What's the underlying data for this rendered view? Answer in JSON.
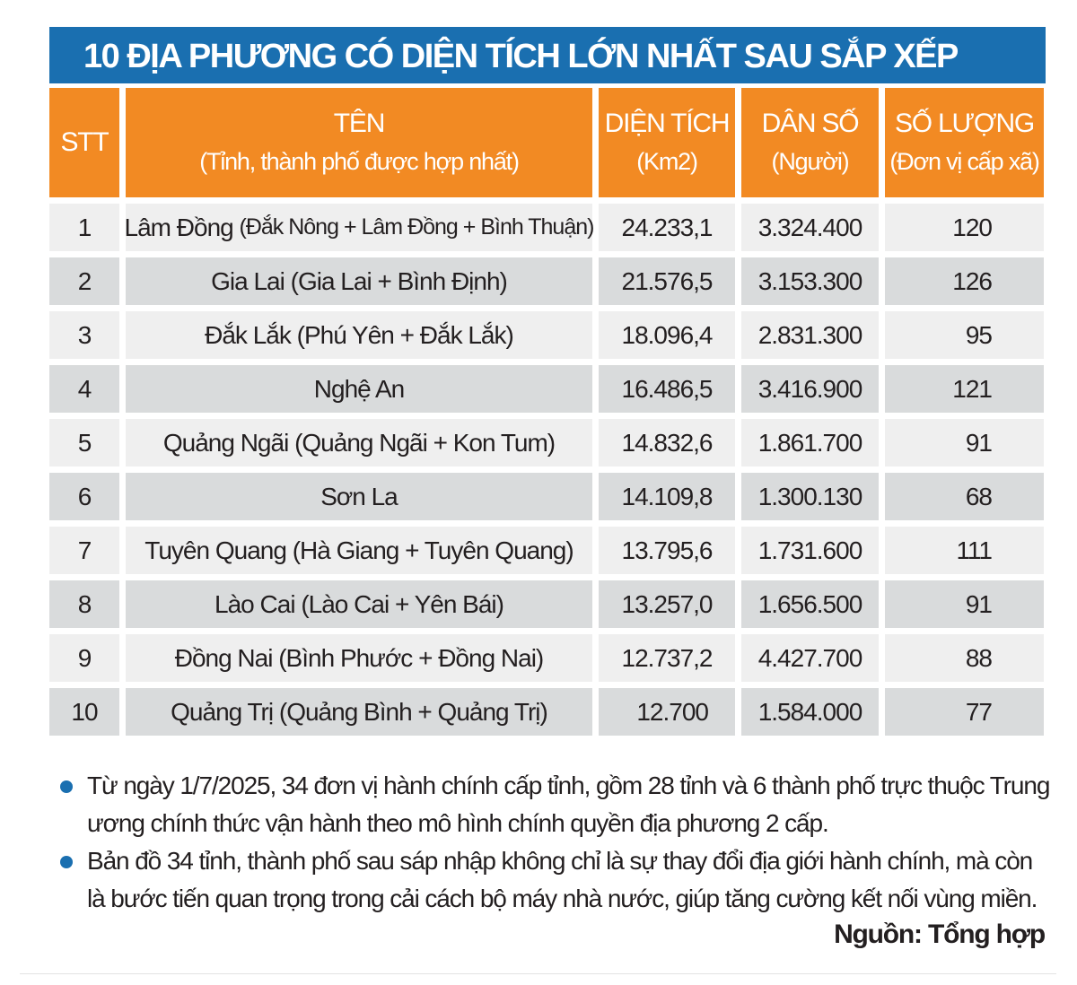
{
  "title": "10 ĐỊA PHƯƠNG CÓ DIỆN TÍCH LỚN NHẤT SAU SẮP XẾP",
  "chart_data": {
    "type": "table",
    "title": "10 ĐỊA PHƯƠNG CÓ DIỆN TÍCH LỚN NHẤT SAU SẮP XẾP",
    "columns": [
      {
        "label": "STT",
        "sub": ""
      },
      {
        "label": "TÊN",
        "sub": "(Tỉnh, thành phố được hợp nhất)"
      },
      {
        "label": "DIỆN TÍCH",
        "sub": "(Km2)"
      },
      {
        "label": "DÂN SỐ",
        "sub": "(Người)"
      },
      {
        "label": "SỐ LƯỢNG",
        "sub": "(Đơn vị cấp xã)"
      }
    ],
    "rows": [
      {
        "stt": "1",
        "name": "Lâm Đồng",
        "merged": "(Đắk Nông + Lâm Đồng + Bình Thuận)",
        "area": "24.233,1",
        "population": "3.324.400",
        "communes": "120"
      },
      {
        "stt": "2",
        "name": "Gia Lai",
        "merged": "(Gia Lai + Bình Định)",
        "area": "21.576,5",
        "population": "3.153.300",
        "communes": "126"
      },
      {
        "stt": "3",
        "name": "Đắk Lắk",
        "merged": "(Phú Yên + Đắk Lắk)",
        "area": "18.096,4",
        "population": "2.831.300",
        "communes": "95"
      },
      {
        "stt": "4",
        "name": "Nghệ An",
        "merged": "",
        "area": "16.486,5",
        "population": "3.416.900",
        "communes": "121"
      },
      {
        "stt": "5",
        "name": "Quảng Ngãi",
        "merged": "(Quảng Ngãi + Kon Tum)",
        "area": "14.832,6",
        "population": "1.861.700",
        "communes": "91"
      },
      {
        "stt": "6",
        "name": "Sơn La",
        "merged": "",
        "area": "14.109,8",
        "population": "1.300.130",
        "communes": "68"
      },
      {
        "stt": "7",
        "name": "Tuyên Quang",
        "merged": "(Hà Giang + Tuyên Quang)",
        "area": "13.795,6",
        "population": "1.731.600",
        "communes": "111"
      },
      {
        "stt": "8",
        "name": "Lào Cai",
        "merged": "(Lào Cai + Yên Bái)",
        "area": "13.257,0",
        "population": "1.656.500",
        "communes": "91"
      },
      {
        "stt": "9",
        "name": "Đồng Nai",
        "merged": "(Bình Phước + Đồng Nai)",
        "area": "12.737,2",
        "population": "4.427.700",
        "communes": "88"
      },
      {
        "stt": "10",
        "name": "Quảng Trị",
        "merged": "(Quảng Bình + Quảng Trị)",
        "area": "12.700",
        "population": "1.584.000",
        "communes": "77"
      }
    ]
  },
  "notes": [
    "Từ ngày 1/7/2025, 34 đơn vị hành chính cấp tỉnh, gồm 28 tỉnh và 6 thành phố trực thuộc Trung ương chính thức vận hành theo mô hình chính quyền địa phương 2 cấp.",
    "Bản đồ 34 tỉnh, thành phố sau sáp nhập không chỉ là sự thay đổi địa giới hành chính, mà còn là bước tiến quan trọng trong cải cách bộ máy nhà nước, giúp tăng cường kết nối vùng miền."
  ],
  "source": "Nguồn: Tổng hợp",
  "colors": {
    "title_bg": "#1a6fb0",
    "header_bg": "#f28a23",
    "row_light": "#efefef",
    "row_dark": "#d9dbdc"
  }
}
